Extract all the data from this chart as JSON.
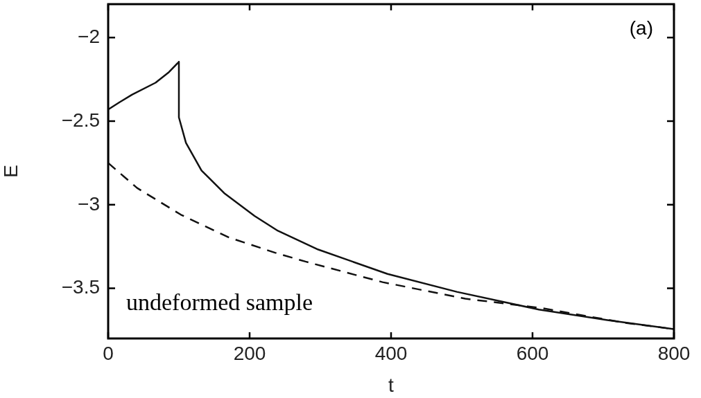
{
  "chart_data": {
    "type": "line",
    "xlabel": "t",
    "ylabel": "E",
    "xlim": [
      0,
      800
    ],
    "ylim": [
      -3.8,
      -1.8
    ],
    "xticks": [
      0,
      200,
      400,
      600,
      800
    ],
    "yticks": [
      -3.5,
      -3,
      -2.5,
      -2
    ],
    "grid": false,
    "legend": false,
    "marker": "none",
    "annotations": [
      "(a)",
      "undeformed sample"
    ],
    "series": [
      {
        "color": "#111111",
        "line_style": "solid",
        "x": [
          0,
          0,
          16,
          34,
          67,
          85,
          100,
          100,
          110,
          132,
          164,
          207,
          240,
          297,
          395,
          493,
          609,
          706,
          800
        ],
        "values": [
          -2.75,
          -2.43,
          -2.387,
          -2.341,
          -2.27,
          -2.21,
          -2.145,
          -2.477,
          -2.63,
          -2.795,
          -2.93,
          -3.067,
          -3.156,
          -3.268,
          -3.414,
          -3.521,
          -3.627,
          -3.69,
          -3.744
        ]
      },
      {
        "color": "#111111",
        "line_style": "dashed",
        "x": [
          0,
          41,
          103,
          171,
          236,
          279,
          388,
          505,
          613,
          730,
          800
        ],
        "values": [
          -2.75,
          -2.9,
          -3.06,
          -3.196,
          -3.287,
          -3.34,
          -3.463,
          -3.562,
          -3.618,
          -3.706,
          -3.744
        ]
      }
    ]
  }
}
